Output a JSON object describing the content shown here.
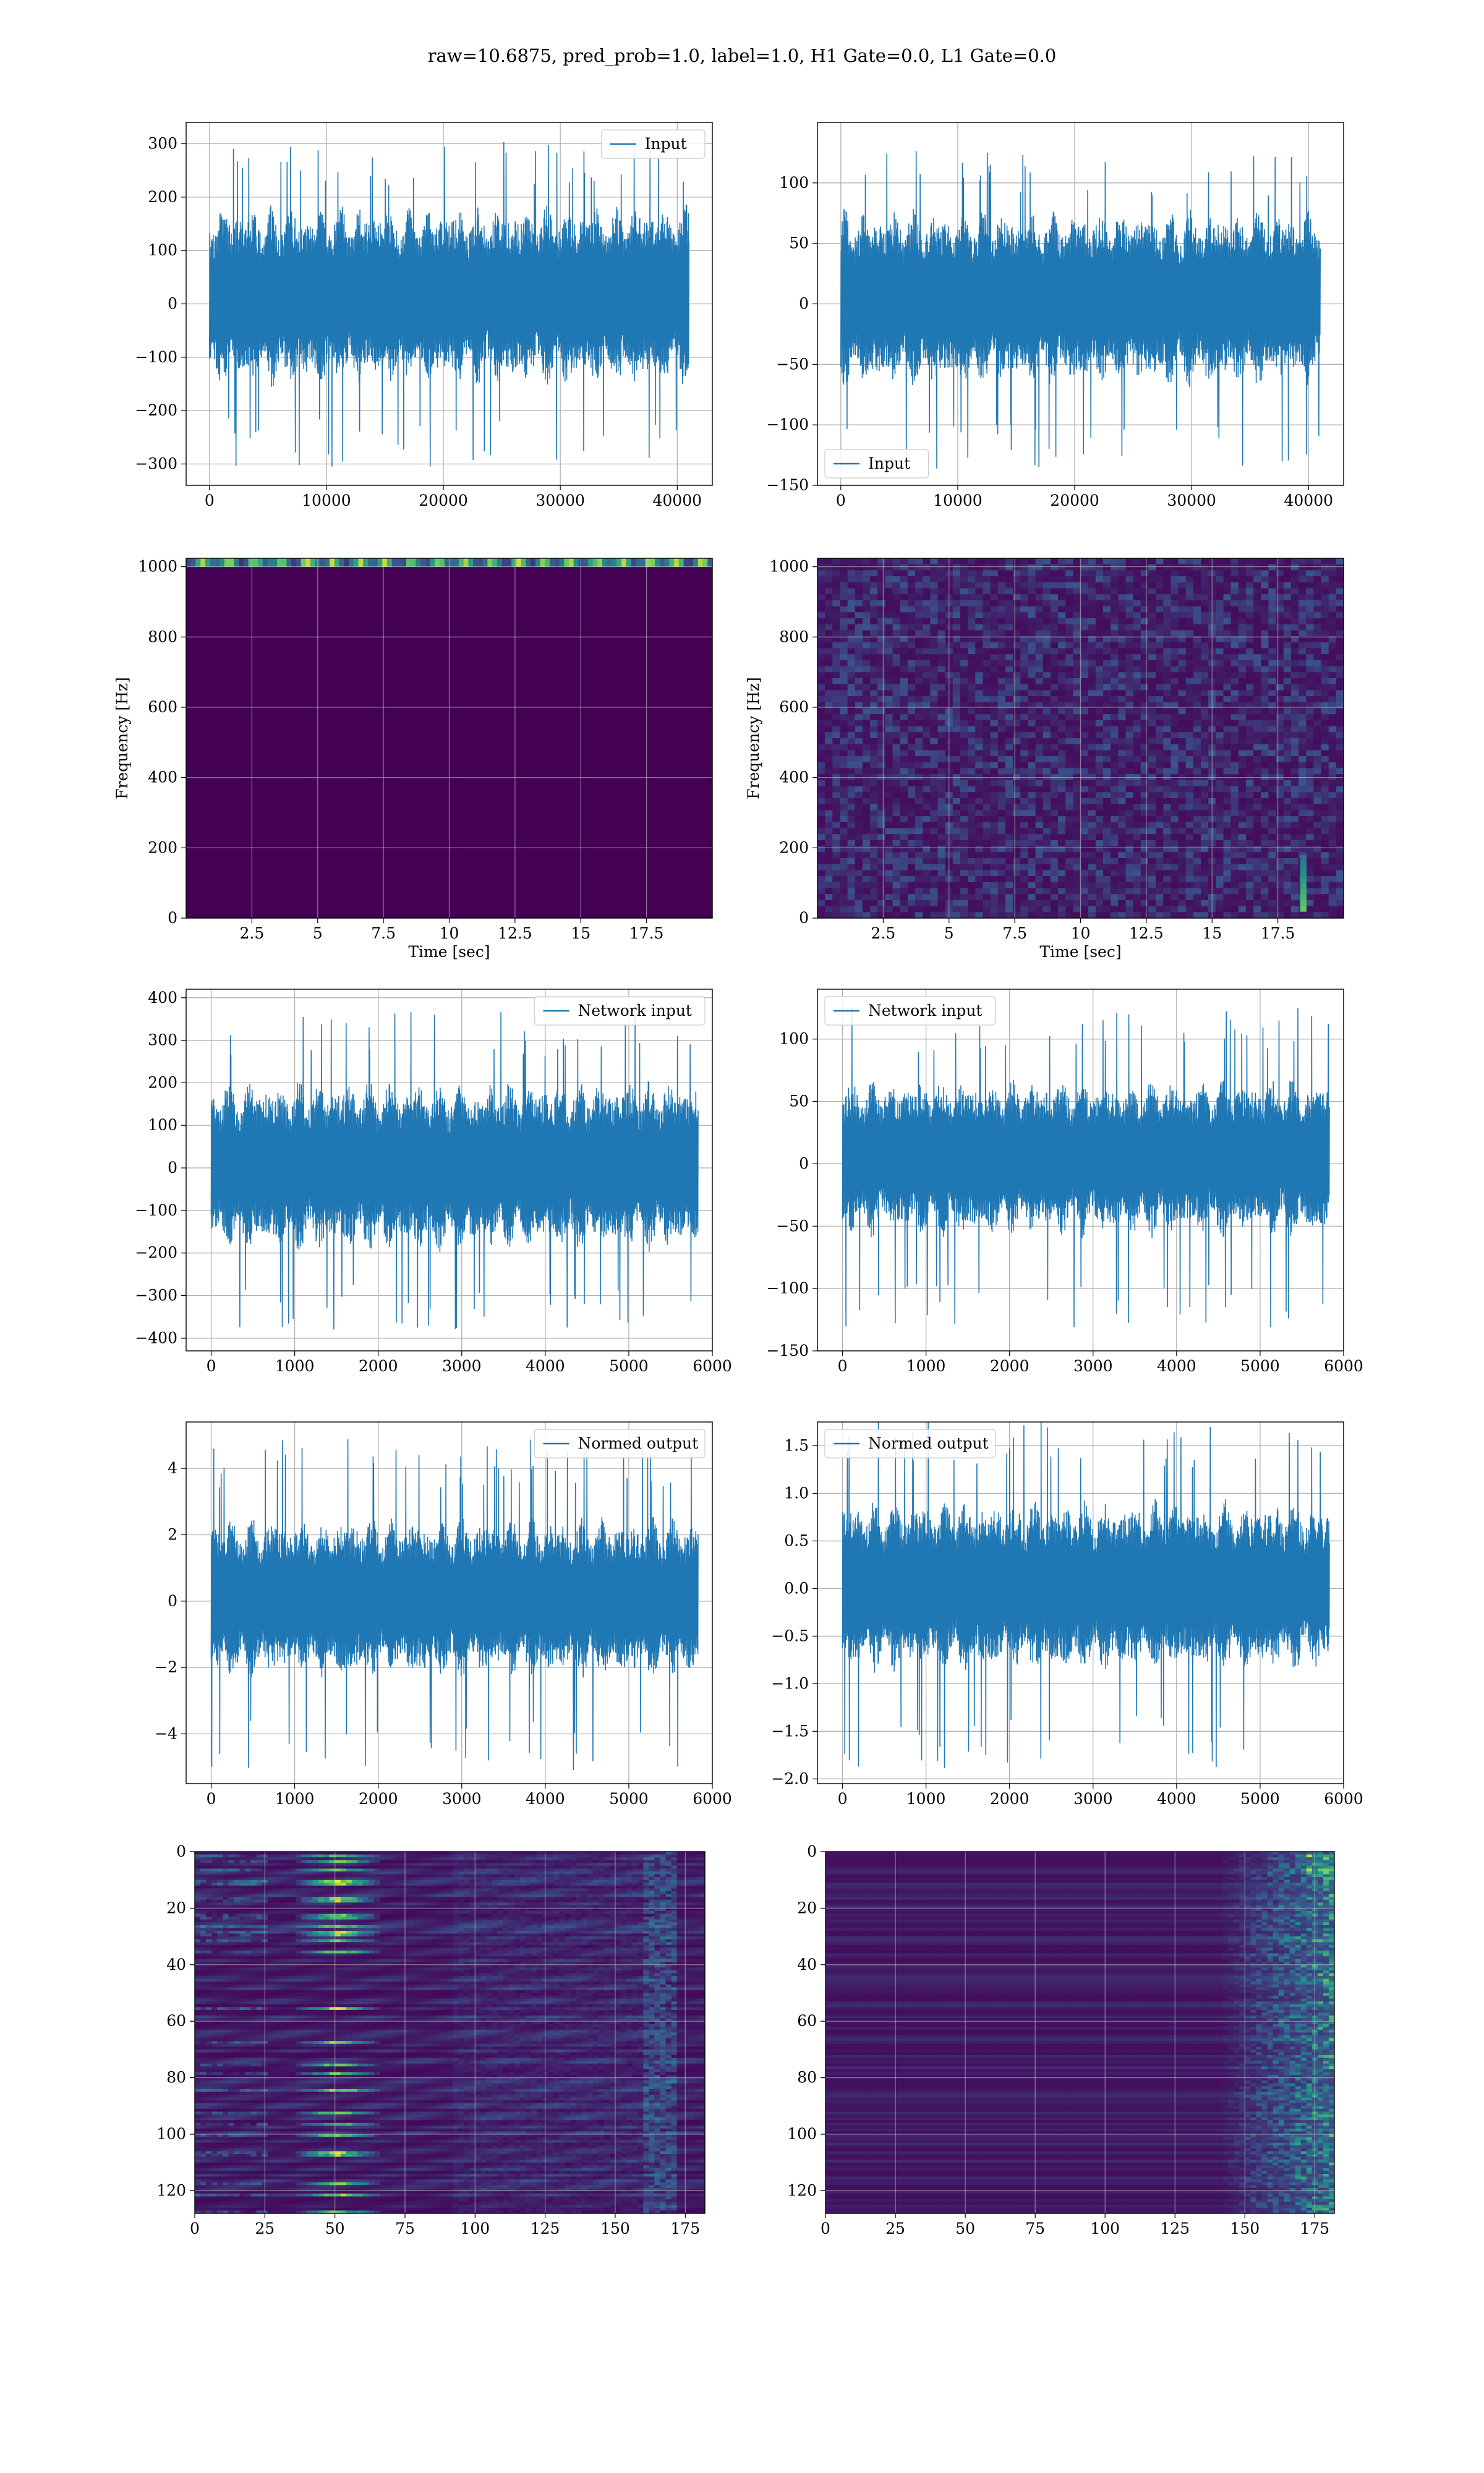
{
  "title": "raw=10.6875, pred_prob=1.0, label=1.0, H1 Gate=0.0, L1 Gate=0.0",
  "colors": {
    "line": "#1f77b4",
    "grid": "#b0b0b0",
    "viridis_low": "#440154",
    "viridis_mid": "#21918c",
    "viridis_high": "#fde725"
  },
  "chart_data": [
    {
      "id": "r1c1",
      "type": "line",
      "legend": "Input",
      "legend_loc": "upper right",
      "xlim": [
        -2000,
        43000
      ],
      "ylim": [
        -340,
        340
      ],
      "xticks": [
        0,
        10000,
        20000,
        30000,
        40000
      ],
      "yticks": [
        300,
        200,
        100,
        0,
        -100,
        -200,
        -300
      ],
      "ytick_labels": [
        "300",
        "200",
        "100",
        "0",
        "−100",
        "−200",
        "−300"
      ],
      "series": [
        {
          "x_range": [
            0,
            41000
          ],
          "n_points": 41000,
          "envelope": {
            "typical": [
              -160,
              190
            ],
            "extreme": [
              -305,
              310
            ]
          }
        }
      ]
    },
    {
      "id": "r1c2",
      "type": "line",
      "legend": "Input",
      "legend_loc": "lower left",
      "xlim": [
        -2000,
        43000
      ],
      "ylim": [
        -150,
        150
      ],
      "xticks": [
        0,
        10000,
        20000,
        30000,
        40000
      ],
      "yticks": [
        100,
        50,
        0,
        -50,
        -100,
        -150
      ],
      "ytick_labels": [
        "100",
        "50",
        "0",
        "−50",
        "−100",
        "−150"
      ],
      "series": [
        {
          "x_range": [
            0,
            41000
          ],
          "n_points": 41000,
          "envelope": {
            "typical": [
              -70,
              80
            ],
            "extreme": [
              -140,
              127
            ]
          }
        }
      ]
    },
    {
      "id": "r2c1",
      "type": "heatmap",
      "ylabel": "Frequency [Hz]",
      "xlabel": "Time [sec]",
      "xlim": [
        0,
        20
      ],
      "ylim": [
        0,
        1024
      ],
      "xticks": [
        2.5,
        5.0,
        7.5,
        10.0,
        12.5,
        15.0,
        17.5
      ],
      "yticks": [
        0,
        200,
        400,
        600,
        800,
        1000
      ],
      "note": "power concentrated at top band near 1024 Hz"
    },
    {
      "id": "r2c2",
      "type": "heatmap",
      "ylabel": "Frequency [Hz]",
      "xlabel": "Time [sec]",
      "xlim": [
        0,
        20
      ],
      "ylim": [
        0,
        1024
      ],
      "xticks": [
        2.5,
        5.0,
        7.5,
        10.0,
        12.5,
        15.0,
        17.5
      ],
      "yticks": [
        0,
        200,
        400,
        600,
        800,
        1000
      ],
      "note": "noise-like speckle with a bright feature near 18.5 sec below 200 Hz"
    },
    {
      "id": "r3c1",
      "type": "line",
      "legend": "Network input",
      "legend_loc": "upper right",
      "xlim": [
        -300,
        6000
      ],
      "ylim": [
        -430,
        420
      ],
      "xticks": [
        0,
        1000,
        2000,
        3000,
        4000,
        5000,
        6000
      ],
      "yticks": [
        400,
        300,
        200,
        100,
        0,
        -100,
        -200,
        -300,
        -400
      ],
      "ytick_labels": [
        "400",
        "300",
        "200",
        "100",
        "0",
        "−100",
        "−200",
        "−300",
        "−400"
      ],
      "series": [
        {
          "x_range": [
            0,
            5830
          ],
          "n_points": 5830,
          "envelope": {
            "typical": [
              -200,
              210
            ],
            "extreme": [
              -385,
              370
            ]
          }
        }
      ]
    },
    {
      "id": "r3c2",
      "type": "line",
      "legend": "Network input",
      "legend_loc": "upper left",
      "xlim": [
        -300,
        6000
      ],
      "ylim": [
        -150,
        140
      ],
      "xticks": [
        0,
        1000,
        2000,
        3000,
        4000,
        5000,
        6000
      ],
      "yticks": [
        100,
        50,
        0,
        -50,
        -100,
        -150
      ],
      "ytick_labels": [
        "100",
        "50",
        "0",
        "−50",
        "−100",
        "−150"
      ],
      "series": [
        {
          "x_range": [
            0,
            5830
          ],
          "n_points": 5830,
          "envelope": {
            "typical": [
              -60,
              70
            ],
            "extreme": [
              -137,
              127
            ]
          }
        }
      ]
    },
    {
      "id": "r4c1",
      "type": "line",
      "legend": "Normed output",
      "legend_loc": "upper right",
      "xlim": [
        -300,
        6000
      ],
      "ylim": [
        -5.5,
        5.4
      ],
      "xticks": [
        0,
        1000,
        2000,
        3000,
        4000,
        5000,
        6000
      ],
      "yticks": [
        4,
        2,
        0,
        -2,
        -4
      ],
      "ytick_labels": [
        "4",
        "2",
        "0",
        "−2",
        "−4"
      ],
      "series": [
        {
          "x_range": [
            0,
            5830
          ],
          "n_points": 5830,
          "envelope": {
            "typical": [
              -2.4,
              2.6
            ],
            "extreme": [
              -5.1,
              4.9
            ]
          }
        }
      ]
    },
    {
      "id": "r4c2",
      "type": "line",
      "legend": "Normed output",
      "legend_loc": "upper left",
      "xlim": [
        -300,
        6000
      ],
      "ylim": [
        -2.05,
        1.75
      ],
      "xticks": [
        0,
        1000,
        2000,
        3000,
        4000,
        5000,
        6000
      ],
      "yticks": [
        1.5,
        1.0,
        0.5,
        0.0,
        -0.5,
        -1.0,
        -1.5,
        -2.0
      ],
      "ytick_labels": [
        "1.5",
        "1.0",
        "0.5",
        "0.0",
        "−0.5",
        "−1.0",
        "−1.5",
        "−2.0"
      ],
      "series": [
        {
          "x_range": [
            0,
            5830
          ],
          "n_points": 5830,
          "envelope": {
            "typical": [
              -0.9,
              0.95
            ],
            "extreme": [
              -1.9,
              1.8
            ]
          }
        }
      ]
    },
    {
      "id": "r5c1",
      "type": "heatmap",
      "xlim": [
        0,
        182
      ],
      "ylim": [
        128,
        0
      ],
      "xticks": [
        0,
        25,
        50,
        75,
        100,
        125,
        150,
        175
      ],
      "yticks": [
        0,
        20,
        40,
        60,
        80,
        100,
        120
      ],
      "note": "horizontal banding; bright features near column 50 and column 165"
    },
    {
      "id": "r5c2",
      "type": "heatmap",
      "xlim": [
        0,
        182
      ],
      "ylim": [
        128,
        0
      ],
      "xticks": [
        0,
        25,
        50,
        75,
        100,
        125,
        150,
        175
      ],
      "yticks": [
        0,
        20,
        40,
        60,
        80,
        100,
        120
      ],
      "note": "mostly dark; bright features concentrated at columns 150-180"
    }
  ]
}
